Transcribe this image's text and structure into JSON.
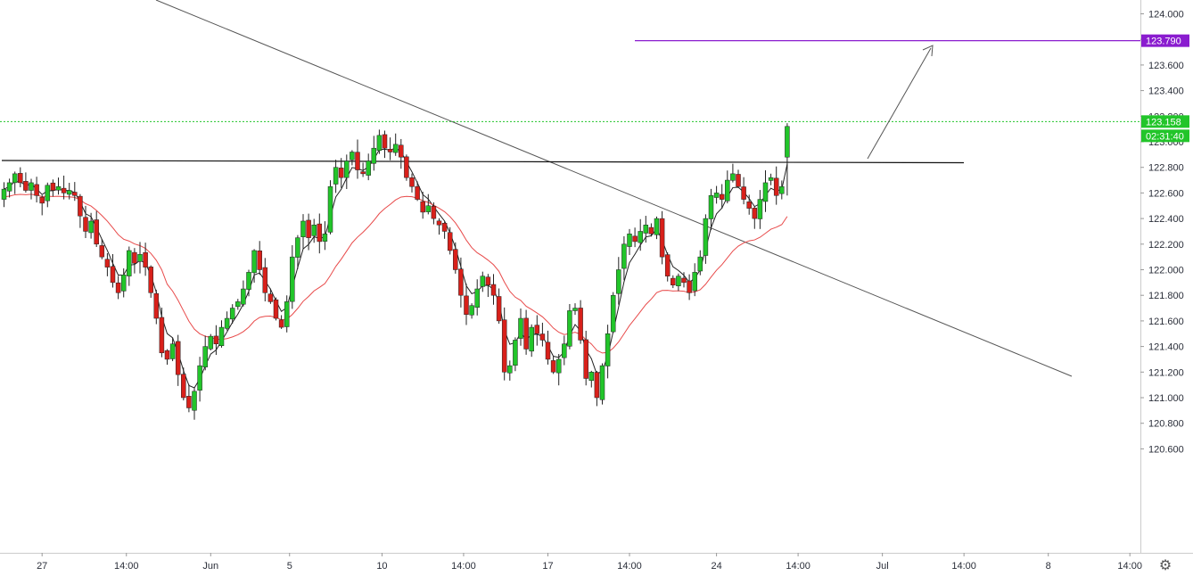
{
  "chart_data": {
    "type": "candlestick",
    "title": "",
    "xlabel": "",
    "ylabel": "",
    "ylim": [
      120.45,
      124.1
    ],
    "y_ticks": [
      {
        "value": 124.0,
        "label": "124.000"
      },
      {
        "value": 123.8,
        "label": "123.800"
      },
      {
        "value": 123.6,
        "label": "123.600"
      },
      {
        "value": 123.4,
        "label": "123.400"
      },
      {
        "value": 123.2,
        "label": "123.200"
      },
      {
        "value": 123.0,
        "label": "123.000"
      },
      {
        "value": 122.8,
        "label": "122.800"
      },
      {
        "value": 122.6,
        "label": "122.600"
      },
      {
        "value": 122.4,
        "label": "122.400"
      },
      {
        "value": 122.2,
        "label": "122.200"
      },
      {
        "value": 122.0,
        "label": "122.000"
      },
      {
        "value": 121.8,
        "label": "121.800"
      },
      {
        "value": 121.6,
        "label": "121.600"
      },
      {
        "value": 121.4,
        "label": "121.400"
      },
      {
        "value": 121.2,
        "label": "121.200"
      },
      {
        "value": 121.0,
        "label": "121.000"
      },
      {
        "value": 120.8,
        "label": "120.800"
      },
      {
        "value": 120.6,
        "label": "120.600"
      }
    ],
    "x_ticks": [
      {
        "bar": 7,
        "label": "27"
      },
      {
        "bar": 22.5,
        "label": "14:00"
      },
      {
        "bar": 38,
        "label": "Jun"
      },
      {
        "bar": 52.5,
        "label": "5"
      },
      {
        "bar": 69.5,
        "label": "10"
      },
      {
        "bar": 84.5,
        "label": "14:00"
      },
      {
        "bar": 100,
        "label": "17"
      },
      {
        "bar": 115,
        "label": "14:00"
      },
      {
        "bar": 131,
        "label": "24"
      },
      {
        "bar": 146,
        "label": "14:00"
      },
      {
        "bar": 161.5,
        "label": "Jul"
      },
      {
        "bar": 176.5,
        "label": "14:00"
      },
      {
        "bar": 192,
        "label": "8"
      },
      {
        "bar": 207,
        "label": "14:00"
      }
    ],
    "colors": {
      "up": "#22c52a",
      "down": "#d8201a",
      "wick": "#222222",
      "ema_fast": "#222222",
      "ema_slow": "#e84a4a",
      "target": "#8a1ccf",
      "current": "#22c52a",
      "grid_line": "#22c52a"
    },
    "candles_close": [
      122.63,
      122.68,
      122.75,
      122.68,
      122.62,
      122.68,
      122.58,
      122.52,
      122.66,
      122.62,
      122.65,
      122.6,
      122.62,
      122.58,
      122.42,
      122.3,
      122.38,
      122.2,
      122.1,
      122.02,
      121.9,
      121.82,
      121.96,
      122.15,
      122.05,
      122.12,
      122.02,
      121.82,
      121.62,
      121.35,
      121.3,
      121.42,
      121.18,
      121.0,
      120.92,
      121.05,
      121.25,
      121.4,
      121.48,
      121.42,
      121.55,
      121.62,
      121.7,
      121.75,
      121.85,
      121.98,
      122.15,
      122.0,
      121.82,
      121.75,
      121.62,
      121.55,
      121.75,
      122.1,
      122.25,
      122.38,
      122.25,
      122.35,
      122.22,
      122.28,
      122.65,
      122.8,
      122.72,
      122.85,
      122.92,
      122.78,
      122.75,
      122.85,
      122.95,
      123.05,
      122.95,
      122.92,
      122.98,
      122.88,
      122.72,
      122.65,
      122.55,
      122.45,
      122.5,
      122.4,
      122.35,
      122.3,
      122.15,
      122.0,
      121.8,
      121.65,
      121.72,
      121.85,
      121.95,
      121.88,
      121.8,
      121.6,
      121.2,
      121.25,
      121.45,
      121.62,
      121.38,
      121.55,
      121.5,
      121.45,
      121.3,
      121.2,
      121.3,
      121.42,
      121.68,
      121.7,
      121.45,
      121.15,
      121.2,
      121.0,
      121.25,
      121.5,
      121.8,
      122.0,
      122.2,
      122.28,
      122.22,
      122.3,
      122.35,
      122.28,
      122.4,
      122.1,
      121.95,
      121.88,
      121.95,
      121.9,
      121.82,
      121.98,
      122.1,
      122.4,
      122.58,
      122.6,
      122.55,
      122.7,
      122.75,
      122.65,
      122.55,
      122.48,
      122.4,
      122.55,
      122.68,
      122.72,
      122.58,
      122.65,
      123.12
    ]
  }
}
